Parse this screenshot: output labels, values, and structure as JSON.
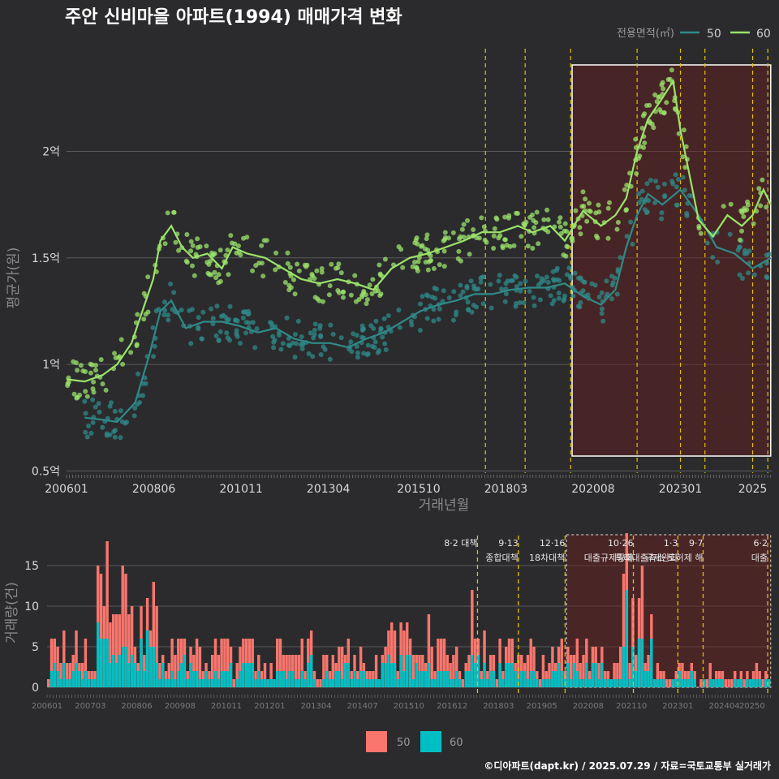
{
  "title": "주안 신비마을 아파트(1994) 매매가격 변화",
  "footer": "©디아파트(dapt.kr) / 2025.07.29 / 자료=국토교통부 실거래가",
  "colors": {
    "s50": "#2f8a88",
    "s60": "#9be36b",
    "bar50": "#f8766d",
    "bar60": "#00bfc4",
    "event": "#e6c200",
    "highlight": "#ffffff"
  },
  "chart_data": [
    {
      "type": "line",
      "title": "주안 신비마을 아파트(1994) 매매가격 변화",
      "xlabel": "거래년월",
      "ylabel": "평균가(원)",
      "x_ticks": [
        "200601",
        "200806",
        "201011",
        "201304",
        "201510",
        "201803",
        "202008",
        "202301",
        "2025"
      ],
      "y_ticks": [
        {
          "v": 0.5,
          "label": "0.5억"
        },
        {
          "v": 1.0,
          "label": "1억"
        },
        {
          "v": 1.5,
          "label": "1.5억"
        },
        {
          "v": 2.0,
          "label": "2억"
        }
      ],
      "ylim": [
        0.49,
        2.55
      ],
      "legend": {
        "title": "전용면적(㎡)",
        "placement": "top-right"
      },
      "series": [
        {
          "name": "50",
          "points": [
            [
              2006.5,
              0.75
            ],
            [
              2007.0,
              0.74
            ],
            [
              2007.4,
              0.73
            ],
            [
              2007.9,
              0.82
            ],
            [
              2008.3,
              1.05
            ],
            [
              2008.6,
              1.25
            ],
            [
              2008.9,
              1.3
            ],
            [
              2009.3,
              1.17
            ],
            [
              2009.8,
              1.2
            ],
            [
              2010.3,
              1.2
            ],
            [
              2010.8,
              1.18
            ],
            [
              2011.3,
              1.15
            ],
            [
              2011.8,
              1.17
            ],
            [
              2012.3,
              1.12
            ],
            [
              2012.8,
              1.1
            ],
            [
              2013.3,
              1.1
            ],
            [
              2013.8,
              1.08
            ],
            [
              2014.3,
              1.12
            ],
            [
              2014.8,
              1.15
            ],
            [
              2015.3,
              1.2
            ],
            [
              2015.8,
              1.25
            ],
            [
              2016.3,
              1.28
            ],
            [
              2016.8,
              1.3
            ],
            [
              2017.3,
              1.33
            ],
            [
              2017.8,
              1.33
            ],
            [
              2018.3,
              1.35
            ],
            [
              2018.8,
              1.36
            ],
            [
              2019.3,
              1.36
            ],
            [
              2019.8,
              1.38
            ],
            [
              2020.3,
              1.32
            ],
            [
              2020.8,
              1.28
            ],
            [
              2021.2,
              1.35
            ],
            [
              2021.5,
              1.55
            ],
            [
              2021.8,
              1.7
            ],
            [
              2022.1,
              1.8
            ],
            [
              2022.5,
              1.75
            ],
            [
              2023.0,
              1.82
            ],
            [
              2023.5,
              1.7
            ],
            [
              2024.0,
              1.55
            ],
            [
              2024.5,
              1.52
            ],
            [
              2025.0,
              1.45
            ],
            [
              2025.5,
              1.5
            ]
          ]
        },
        {
          "name": "60",
          "points": [
            [
              2006.0,
              0.93
            ],
            [
              2006.5,
              0.92
            ],
            [
              2007.0,
              0.95
            ],
            [
              2007.4,
              1.0
            ],
            [
              2007.8,
              1.1
            ],
            [
              2008.1,
              1.25
            ],
            [
              2008.4,
              1.4
            ],
            [
              2008.6,
              1.58
            ],
            [
              2008.9,
              1.65
            ],
            [
              2009.2,
              1.55
            ],
            [
              2009.5,
              1.5
            ],
            [
              2009.9,
              1.52
            ],
            [
              2010.3,
              1.45
            ],
            [
              2010.6,
              1.55
            ],
            [
              2011.0,
              1.52
            ],
            [
              2011.5,
              1.5
            ],
            [
              2012.0,
              1.45
            ],
            [
              2012.5,
              1.4
            ],
            [
              2013.0,
              1.38
            ],
            [
              2013.5,
              1.4
            ],
            [
              2014.0,
              1.38
            ],
            [
              2014.5,
              1.35
            ],
            [
              2015.0,
              1.45
            ],
            [
              2015.5,
              1.5
            ],
            [
              2016.0,
              1.52
            ],
            [
              2016.5,
              1.55
            ],
            [
              2017.0,
              1.58
            ],
            [
              2017.5,
              1.62
            ],
            [
              2018.0,
              1.62
            ],
            [
              2018.5,
              1.65
            ],
            [
              2018.9,
              1.62
            ],
            [
              2019.4,
              1.65
            ],
            [
              2019.8,
              1.58
            ],
            [
              2020.3,
              1.72
            ],
            [
              2020.8,
              1.65
            ],
            [
              2021.2,
              1.7
            ],
            [
              2021.5,
              1.78
            ],
            [
              2021.8,
              2.0
            ],
            [
              2022.1,
              2.15
            ],
            [
              2022.5,
              2.25
            ],
            [
              2022.8,
              2.33
            ],
            [
              2023.0,
              2.1
            ],
            [
              2023.5,
              1.68
            ],
            [
              2023.9,
              1.6
            ],
            [
              2024.3,
              1.7
            ],
            [
              2024.7,
              1.65
            ],
            [
              2025.0,
              1.7
            ],
            [
              2025.3,
              1.82
            ],
            [
              2025.5,
              1.75
            ]
          ]
        }
      ]
    },
    {
      "type": "bar",
      "ylabel": "거래량(건)",
      "y_ticks": [
        0,
        5,
        10,
        15
      ],
      "ylim": [
        0,
        19.5
      ],
      "x_ticks": [
        "200601",
        "200703",
        "200806",
        "200908",
        "201011",
        "201201",
        "201304",
        "201407",
        "201510",
        "201612",
        "201803",
        "201905",
        "202008",
        "202110",
        "202301",
        "202404",
        "20250"
      ],
      "legend": {
        "placement": "bottom"
      },
      "series": [
        {
          "name": "50"
        },
        {
          "name": "60"
        }
      ],
      "events": [
        {
          "date": 2017.6,
          "label1": "8·2 대책",
          "label2": ""
        },
        {
          "date": 2018.7,
          "label1": "9·13",
          "label2": "종합대책"
        },
        {
          "date": 2019.96,
          "label1": "12·16",
          "label2": "18차대책"
        },
        {
          "date": 2021.8,
          "label1": "10·26",
          "label2": "대출규제강화"
        },
        {
          "date": 2023.0,
          "label1": "1·3",
          "label2": "규제완화"
        },
        {
          "date": 2023.68,
          "label1": "9·7",
          "label2": "특례대출축소 토허제 해"
        },
        {
          "date": 2025.42,
          "label1": "6·2",
          "label2": "대출"
        }
      ]
    }
  ]
}
